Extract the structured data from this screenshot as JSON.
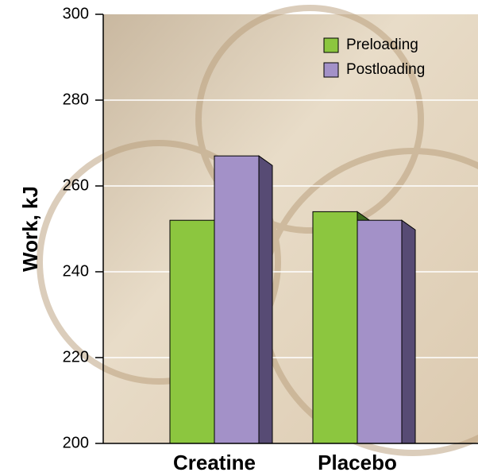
{
  "chart_data": {
    "type": "bar3d",
    "y_label": "Work, kJ",
    "categories": [
      "Creatine",
      "Placebo"
    ],
    "series": [
      {
        "name": "Preloading",
        "color": "#8cc63f",
        "side_color": "#3f6e1e",
        "values": [
          252,
          254
        ]
      },
      {
        "name": "Postloading",
        "color": "#a391c8",
        "side_color": "#574b74",
        "values": [
          267,
          252
        ]
      }
    ],
    "ylim": [
      200,
      300
    ],
    "yticks": [
      200,
      220,
      240,
      260,
      280,
      300
    ],
    "grid": true,
    "legend": "top-right"
  }
}
